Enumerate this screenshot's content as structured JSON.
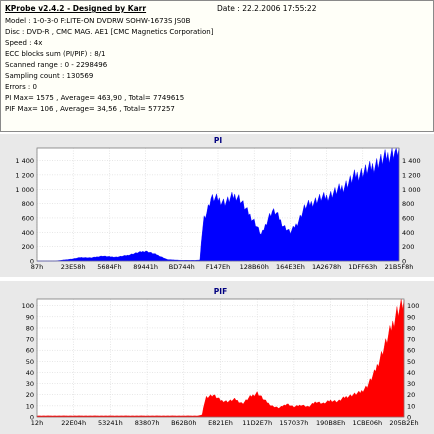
{
  "header": {
    "title": "KProbe v2.4.2 - Designed by Karr",
    "date": "Date : 22.2.2006 17:55:22",
    "lines": [
      "Model : 1-0-3-0 F:LITE-ON DVDRW SOHW-1673S JS0B",
      "Disc : DVD-R , CMC MAG. AE1 [CMC Magnetics Corporation]",
      "Speed : 4x",
      "ECC blocks sum (PI/PIF) : 8/1",
      "Scanned range : 0 - 2298496",
      "Sampling count : 130569",
      "Errors : 0",
      "PI Max= 1575 , Average= 463,90 , Total= 7749615",
      "PIF Max= 106 , Average= 34,56 , Total= 577257"
    ]
  },
  "chart_data": [
    {
      "type": "area",
      "title": "PI",
      "color": "#0000ff",
      "ylim": [
        0,
        1575
      ],
      "yticks": [
        0,
        200,
        400,
        600,
        800,
        1000,
        1200,
        1400
      ],
      "ytick_labels": [
        "0",
        "200",
        "400",
        "600",
        "800",
        "1 000",
        "1 200",
        "1 400"
      ],
      "xtick_labels": [
        "87h",
        "23E58h",
        "5684Fh",
        "89441h",
        "BD744h",
        "F147Eh",
        "128B60h",
        "164E3Eh",
        "1A2678h",
        "1DFF63h",
        "21B5F8h"
      ],
      "x": [
        0,
        0.05,
        0.1,
        0.12,
        0.15,
        0.18,
        0.2,
        0.22,
        0.25,
        0.28,
        0.3,
        0.33,
        0.36,
        0.38,
        0.4,
        0.42,
        0.44,
        0.45,
        0.46,
        0.47,
        0.48,
        0.5,
        0.52,
        0.54,
        0.55,
        0.56,
        0.58,
        0.6,
        0.62,
        0.64,
        0.65,
        0.66,
        0.68,
        0.7,
        0.72,
        0.74,
        0.76,
        0.78,
        0.8,
        0.82,
        0.84,
        0.86,
        0.88,
        0.9,
        0.92,
        0.94,
        0.96,
        0.98,
        1.0
      ],
      "values": [
        0,
        0,
        30,
        50,
        45,
        70,
        60,
        55,
        80,
        120,
        140,
        90,
        20,
        15,
        10,
        10,
        10,
        15,
        600,
        700,
        880,
        870,
        820,
        900,
        920,
        880,
        700,
        560,
        360,
        620,
        700,
        680,
        500,
        400,
        540,
        760,
        820,
        880,
        900,
        960,
        1020,
        1100,
        1200,
        1250,
        1300,
        1380,
        1440,
        1520,
        1560
      ]
    },
    {
      "type": "area",
      "title": "PIF",
      "color": "#ff0000",
      "ylim": [
        0,
        106
      ],
      "yticks": [
        0,
        10,
        20,
        30,
        40,
        50,
        60,
        70,
        80,
        90,
        100
      ],
      "ytick_labels": [
        "0",
        "10",
        "20",
        "30",
        "40",
        "50",
        "60",
        "70",
        "80",
        "90",
        "100"
      ],
      "xtick_labels": [
        "12h",
        "22E04h",
        "53241h",
        "83807h",
        "B62B0h",
        "E821Eh",
        "11D2E7h",
        "157037h",
        "190B8Eh",
        "1CBE06h",
        "205B2Eh"
      ],
      "x": [
        0,
        0.1,
        0.2,
        0.3,
        0.4,
        0.44,
        0.45,
        0.46,
        0.48,
        0.5,
        0.52,
        0.54,
        0.56,
        0.58,
        0.6,
        0.62,
        0.64,
        0.66,
        0.68,
        0.7,
        0.72,
        0.74,
        0.76,
        0.78,
        0.8,
        0.82,
        0.84,
        0.86,
        0.88,
        0.9,
        0.92,
        0.94,
        0.96,
        0.98,
        1.0
      ],
      "values": [
        1,
        1,
        1,
        1,
        1,
        1,
        2,
        18,
        20,
        15,
        14,
        16,
        12,
        18,
        22,
        15,
        10,
        8,
        12,
        9,
        11,
        9,
        14,
        12,
        15,
        14,
        18,
        20,
        22,
        28,
        40,
        58,
        75,
        95,
        104
      ]
    }
  ]
}
